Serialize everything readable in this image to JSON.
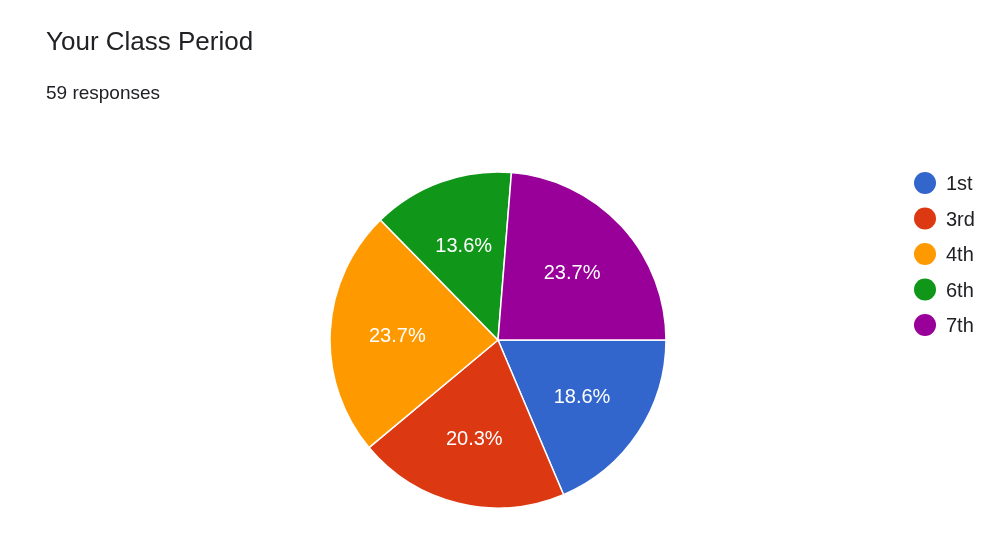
{
  "chart_data": {
    "type": "pie",
    "title": "Your Class Period",
    "subtitle": "59 responses",
    "categories": [
      "1st",
      "3rd",
      "4th",
      "6th",
      "7th"
    ],
    "values": [
      18.6,
      20.3,
      23.7,
      13.6,
      23.7
    ],
    "value_labels": [
      "18.6%",
      "20.3%",
      "23.7%",
      "13.6%",
      "23.7%"
    ],
    "colors": [
      "#3366cc",
      "#dc3912",
      "#ff9900",
      "#109618",
      "#990099"
    ],
    "legend": "right"
  }
}
